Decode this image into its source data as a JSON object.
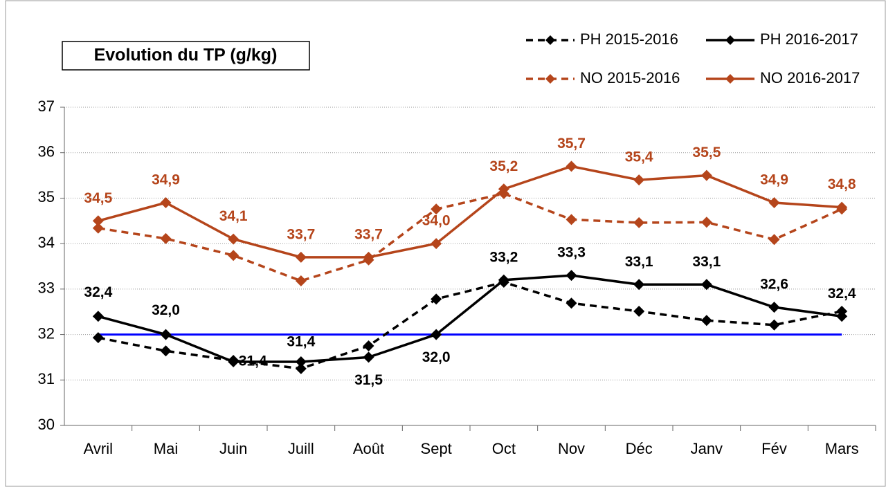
{
  "chart_data": {
    "type": "line",
    "title": "Evolution du TP (g/kg)",
    "categories": [
      "Avril",
      "Mai",
      "Juin",
      "Juill",
      "Août",
      "Sept",
      "Oct",
      "Nov",
      "Déc",
      "Janv",
      "Fév",
      "Mars"
    ],
    "series": [
      {
        "name": "PH 2015-2016",
        "color": "#000000",
        "dash": true,
        "values": [
          31.93,
          31.64,
          31.43,
          31.25,
          31.75,
          32.78,
          33.15,
          32.69,
          32.51,
          32.31,
          32.21,
          32.51
        ]
      },
      {
        "name": "PH 2016-2017",
        "color": "#000000",
        "dash": false,
        "values": [
          32.4,
          32.0,
          31.4,
          31.4,
          31.5,
          32.0,
          33.2,
          33.3,
          33.1,
          33.1,
          32.6,
          32.4
        ],
        "value_labels": [
          "32,4",
          "32,0",
          "31,4",
          "31,4",
          "31,5",
          "32,0",
          "33,2",
          "33,3",
          "33,1",
          "33,1",
          "32,6",
          "32,4"
        ]
      },
      {
        "name": "NO 2015-2016",
        "color": "#b5451b",
        "dash": true,
        "values": [
          34.34,
          34.11,
          33.74,
          33.18,
          33.64,
          34.76,
          35.1,
          34.53,
          34.46,
          34.47,
          34.09,
          34.76
        ]
      },
      {
        "name": "NO 2016-2017",
        "color": "#b5451b",
        "dash": false,
        "values": [
          34.5,
          34.9,
          34.1,
          33.7,
          33.7,
          34.0,
          35.2,
          35.7,
          35.4,
          35.5,
          34.9,
          34.8
        ],
        "value_labels": [
          "34,5",
          "34,9",
          "34,1",
          "33,7",
          "33,7",
          "34,0",
          "35,2",
          "35,7",
          "35,4",
          "35,5",
          "34,9",
          "34,8"
        ]
      }
    ],
    "reference_line": {
      "value": 32,
      "color": "#0000ff"
    },
    "ylim": [
      30,
      37
    ],
    "yticks": [
      30,
      31,
      32,
      33,
      34,
      35,
      36,
      37
    ],
    "grid": true
  }
}
